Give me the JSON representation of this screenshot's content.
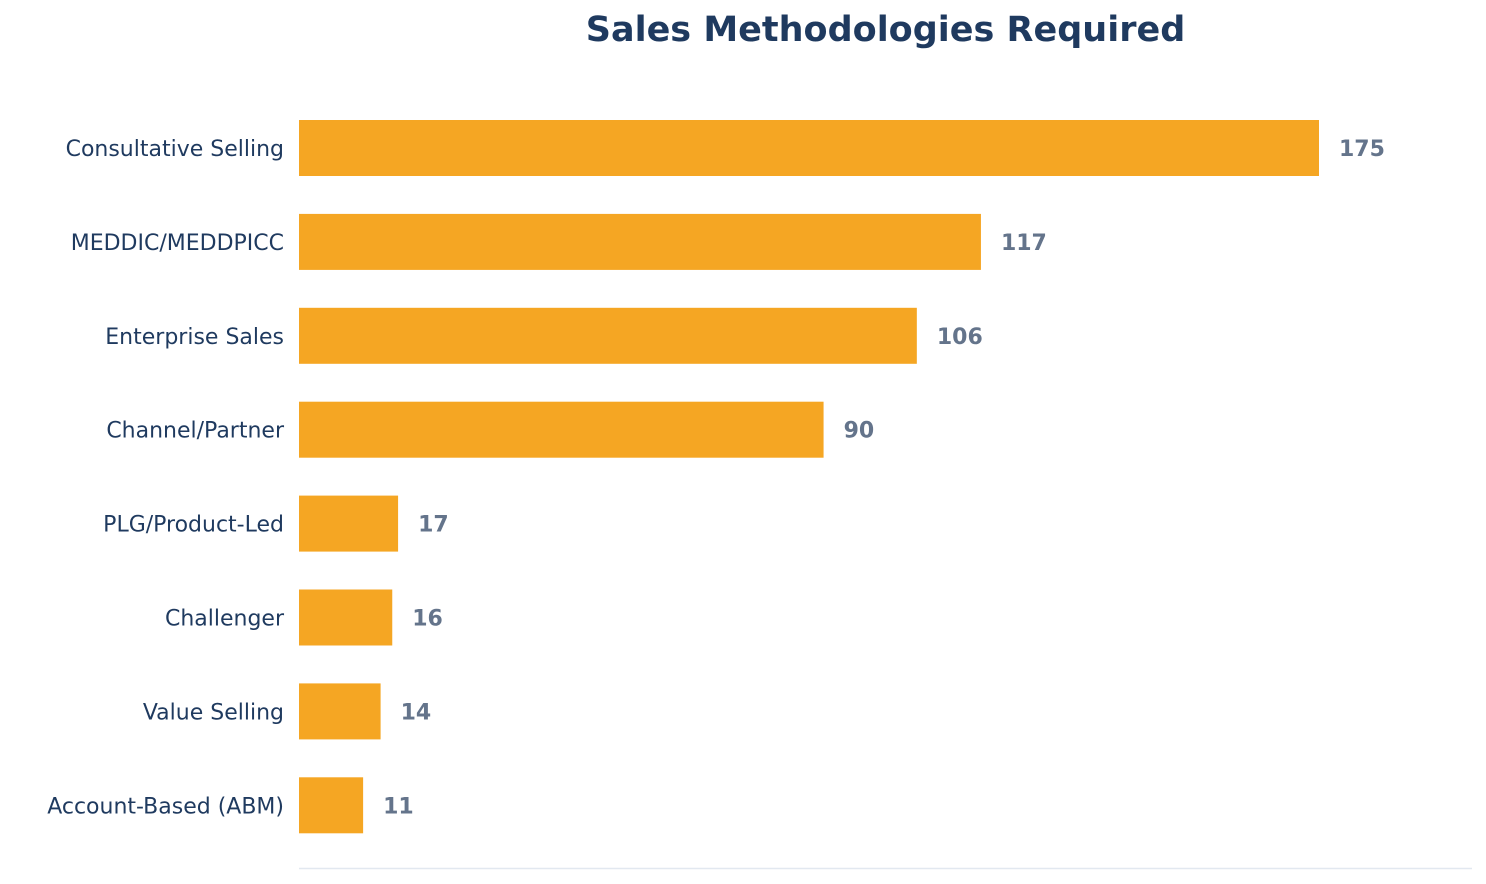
{
  "chart_data": {
    "type": "bar",
    "orientation": "horizontal",
    "title": "Sales Methodologies Required",
    "xlabel": "",
    "ylabel": "",
    "categories": [
      "Consultative Selling",
      "MEDDIC/MEDDPICC",
      "Enterprise Sales",
      "Channel/Partner",
      "PLG/Product-Led",
      "Challenger",
      "Value Selling",
      "Account-Based (ABM)"
    ],
    "values": [
      175,
      117,
      106,
      90,
      17,
      16,
      14,
      11
    ],
    "xlim": [
      0,
      201.25
    ],
    "grid": false,
    "data_labels": true,
    "colors": {
      "bar": "#F5A623",
      "title": "#1F3A5F",
      "category_label": "#1F3A5F",
      "value_label": "#64748B",
      "axis": "#E2E8F0"
    }
  }
}
